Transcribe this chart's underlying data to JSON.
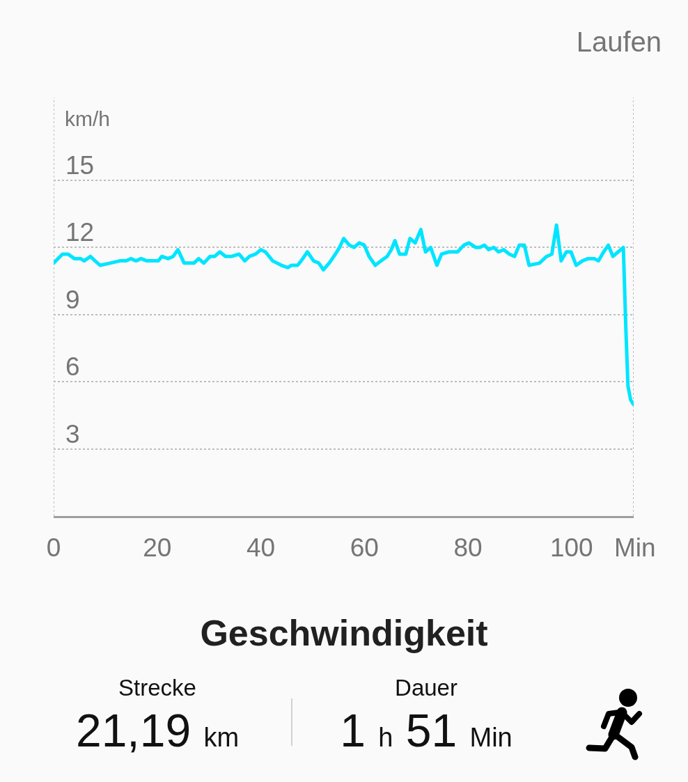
{
  "chart_data": {
    "type": "line",
    "title": "Geschwindigkeit",
    "xlabel": "Min",
    "ylabel": "km/h",
    "annotations": [
      "Laufen",
      "Strecke",
      "21,19 km",
      "Dauer",
      "1 h 51 Min"
    ],
    "series": [
      {
        "color": "#00e5ff",
        "x": [
          0,
          1.7,
          2.8,
          4,
          5.2,
          5.9,
          7.1,
          8,
          9,
          10.9,
          12.8,
          14,
          14.9,
          15.9,
          16.9,
          18,
          19,
          20.2,
          20.9,
          22.1,
          23.1,
          24,
          25.2,
          25.9,
          27.1,
          28,
          29,
          30.2,
          31.1,
          32.1,
          33.2,
          34.4,
          35.8,
          36.9,
          37.8,
          39,
          40,
          40.9,
          42.3,
          44,
          45.2,
          45.9,
          47.1,
          47.8,
          49,
          50.2,
          51.2,
          52.1,
          53.2,
          54.4,
          55.2,
          56,
          57.1,
          58,
          59,
          60,
          60.9,
          62.1,
          63.2,
          64.4,
          65.2,
          65.9,
          66.8,
          68,
          68.8,
          69.8,
          70.9,
          71.8,
          72.8,
          74,
          74.9,
          76.3,
          78,
          79.2,
          80.2,
          81.5,
          82.3,
          83.2,
          84,
          85,
          85.9,
          86.9,
          88,
          89,
          89.9,
          90.9,
          91.8,
          93.8,
          95.2,
          96.2,
          97.1,
          98,
          99,
          99.9,
          100.9,
          102.1,
          103.2,
          104.4,
          105.2,
          106.2,
          107.1,
          108,
          109,
          110,
          110.5,
          110.9,
          111.4,
          111.9
        ],
        "values": [
          11.3,
          11.7,
          11.7,
          11.5,
          11.5,
          11.4,
          11.6,
          11.4,
          11.2,
          11.3,
          11.4,
          11.4,
          11.5,
          11.4,
          11.5,
          11.4,
          11.4,
          11.4,
          11.6,
          11.5,
          11.6,
          11.9,
          11.3,
          11.3,
          11.3,
          11.5,
          11.3,
          11.6,
          11.6,
          11.8,
          11.6,
          11.6,
          11.7,
          11.4,
          11.6,
          11.7,
          11.9,
          11.8,
          11.4,
          11.2,
          11.1,
          11.2,
          11.2,
          11.4,
          11.8,
          11.4,
          11.3,
          11.0,
          11.3,
          11.7,
          12.0,
          12.4,
          12.1,
          12.0,
          12.2,
          12.1,
          11.6,
          11.2,
          11.4,
          11.6,
          11.9,
          12.3,
          11.7,
          11.7,
          12.4,
          12.2,
          12.8,
          11.8,
          12.0,
          11.2,
          11.7,
          11.8,
          11.8,
          12.1,
          12.2,
          12.0,
          12.0,
          12.1,
          11.9,
          12.0,
          11.8,
          11.9,
          11.7,
          11.6,
          12.1,
          12.1,
          11.2,
          11.3,
          11.6,
          11.7,
          13.0,
          11.4,
          11.8,
          11.8,
          11.2,
          11.4,
          11.5,
          11.5,
          11.4,
          11.8,
          12.1,
          11.6,
          11.8,
          12.0,
          8.3,
          5.8,
          5.2,
          5.0
        ]
      }
    ],
    "xlim": [
      0,
      112
    ],
    "xticks": [
      0,
      20,
      40,
      60,
      80,
      100
    ],
    "ylim": [
      0,
      18.7
    ],
    "yticks": [
      3,
      6,
      9,
      12,
      15
    ],
    "grid": "y",
    "line_style": "solid"
  }
}
